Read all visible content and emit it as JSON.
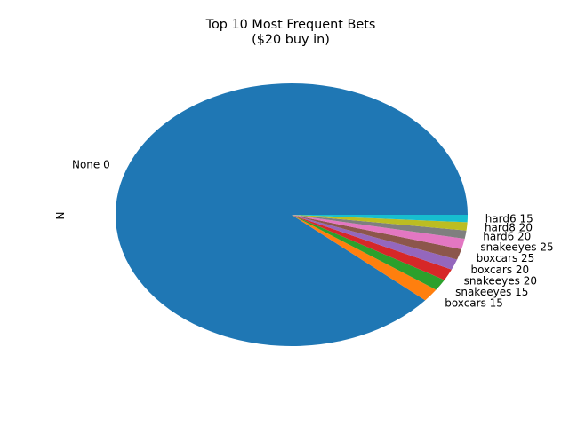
{
  "chart_data": {
    "type": "pie",
    "title": "Top 10 Most Frequent Bets",
    "subtitle": "($20 buy in)",
    "ylabel": "N",
    "legend": "none",
    "slices": [
      {
        "label": "None 0",
        "value": 88.0,
        "color": "#1f77b4"
      },
      {
        "label": "boxcars 15",
        "value": 1.6,
        "color": "#ff7f0e"
      },
      {
        "label": "snakeeyes 15",
        "value": 1.4,
        "color": "#2ca02c"
      },
      {
        "label": "snakeeyes 20",
        "value": 1.4,
        "color": "#d62728"
      },
      {
        "label": "boxcars 20",
        "value": 1.3,
        "color": "#9467bd"
      },
      {
        "label": "boxcars 25",
        "value": 1.3,
        "color": "#8c564b"
      },
      {
        "label": "snakeeyes 25",
        "value": 1.3,
        "color": "#e377c2"
      },
      {
        "label": "hard6 20",
        "value": 1.0,
        "color": "#7f7f7f"
      },
      {
        "label": "hard8 20",
        "value": 1.0,
        "color": "#bcbd22"
      },
      {
        "label": "hard6 15",
        "value": 0.9,
        "color": "#17becf"
      }
    ]
  }
}
